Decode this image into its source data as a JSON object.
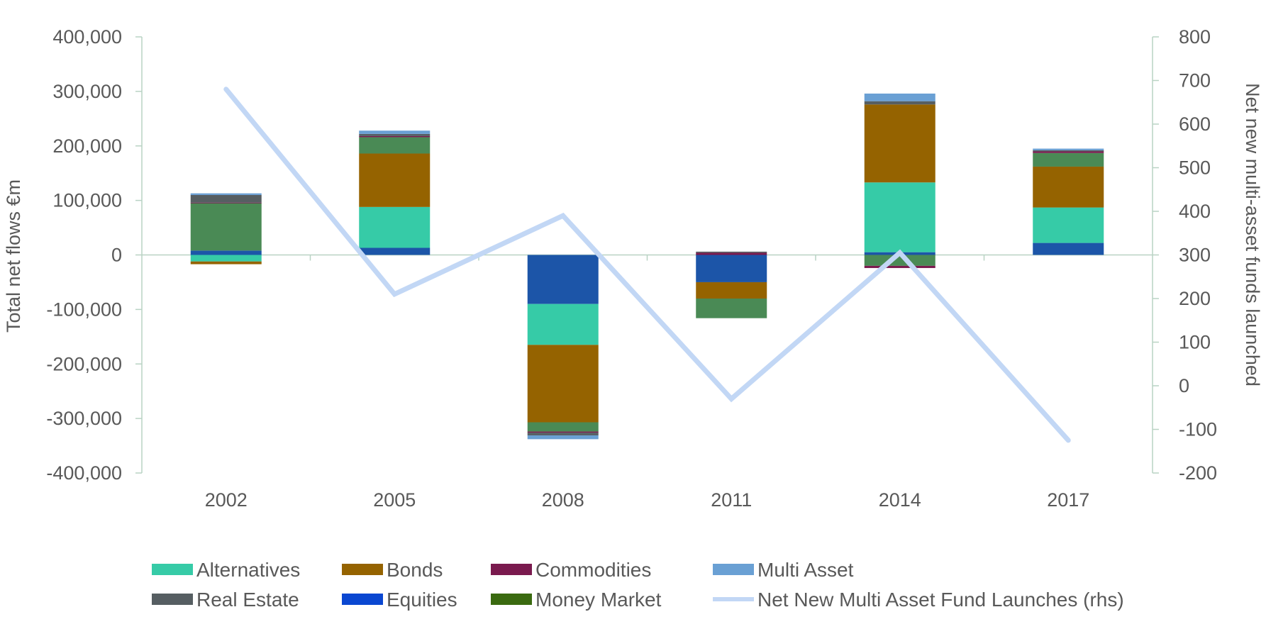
{
  "chart_data": {
    "type": "bar",
    "stacked": true,
    "categories": [
      "2002",
      "2005",
      "2008",
      "2011",
      "2014",
      "2017"
    ],
    "left_axis": {
      "label": "Total net flows €m",
      "ylim": [
        -400000,
        400000
      ],
      "ticks": [
        400000,
        300000,
        200000,
        100000,
        0,
        -100000,
        -200000,
        -300000,
        -400000
      ],
      "tick_labels": [
        "400,000",
        "300,000",
        "200,000",
        "100,000",
        "0",
        "-100,000",
        "-200,000",
        "-300,000",
        "-400,000"
      ]
    },
    "right_axis": {
      "label": "Net new multi-asset funds launched",
      "ylim": [
        -200,
        800
      ],
      "ticks": [
        800,
        700,
        600,
        500,
        400,
        300,
        200,
        100,
        0,
        -100,
        -200
      ],
      "tick_labels": [
        "800",
        "700",
        "600",
        "500",
        "400",
        "300",
        "200",
        "100",
        "0",
        "-100",
        "-200"
      ]
    },
    "series": [
      {
        "name": "Equities",
        "key": "equities",
        "color": "#1c55a8",
        "values": [
          8000,
          13000,
          -90000,
          -50000,
          5000,
          22000
        ]
      },
      {
        "name": "Alternatives",
        "key": "alternatives",
        "color": "#36cba7",
        "values": [
          -12000,
          75000,
          -75000,
          0,
          128000,
          65000
        ]
      },
      {
        "name": "Bonds",
        "key": "bonds",
        "color": "#956300",
        "values": [
          -5000,
          98000,
          -142000,
          -30000,
          143000,
          75000
        ]
      },
      {
        "name": "Money Market",
        "key": "money_market",
        "color": "#4a8a55",
        "values": [
          87000,
          30000,
          -17000,
          -36000,
          -20000,
          25000
        ]
      },
      {
        "name": "Commodities",
        "key": "commodities",
        "color": "#7a1a4e",
        "values": [
          1000,
          2000,
          -2000,
          4000,
          -4000,
          3000
        ]
      },
      {
        "name": "Real Estate",
        "key": "real_estate",
        "color": "#565e62",
        "values": [
          14000,
          4000,
          -5000,
          2000,
          6000,
          2000
        ]
      },
      {
        "name": "Multi Asset",
        "key": "multi_asset",
        "color": "#6aa0d4",
        "values": [
          3000,
          6000,
          -7000,
          0,
          14000,
          3000
        ]
      }
    ],
    "line_series": {
      "name": "Net New Multi Asset Fund Launches (rhs)",
      "color": "#c2d7f5",
      "axis": "right",
      "values": [
        680,
        210,
        390,
        -30,
        305,
        -125
      ]
    },
    "legend": {
      "placement": "bottom",
      "rows": [
        [
          {
            "label": "Alternatives",
            "color": "#36cba7",
            "kind": "bar"
          },
          {
            "label": "Bonds",
            "color": "#956300",
            "kind": "bar"
          },
          {
            "label": "Commodities",
            "color": "#7a1a4e",
            "kind": "bar"
          },
          {
            "label": "Multi Asset",
            "color": "#6aa0d4",
            "kind": "bar"
          }
        ],
        [
          {
            "label": "Real Estate",
            "color": "#565e62",
            "kind": "bar"
          },
          {
            "label": "Equities",
            "color": "#0a47d1",
            "kind": "bar"
          },
          {
            "label": "Money Market",
            "color": "#3a6a10",
            "kind": "bar"
          },
          {
            "label": "Net New Multi Asset Fund Launches (rhs)",
            "color": "#c2d7f5",
            "kind": "line"
          }
        ]
      ]
    },
    "grid": false,
    "axis_color": "#b9d3c4"
  }
}
